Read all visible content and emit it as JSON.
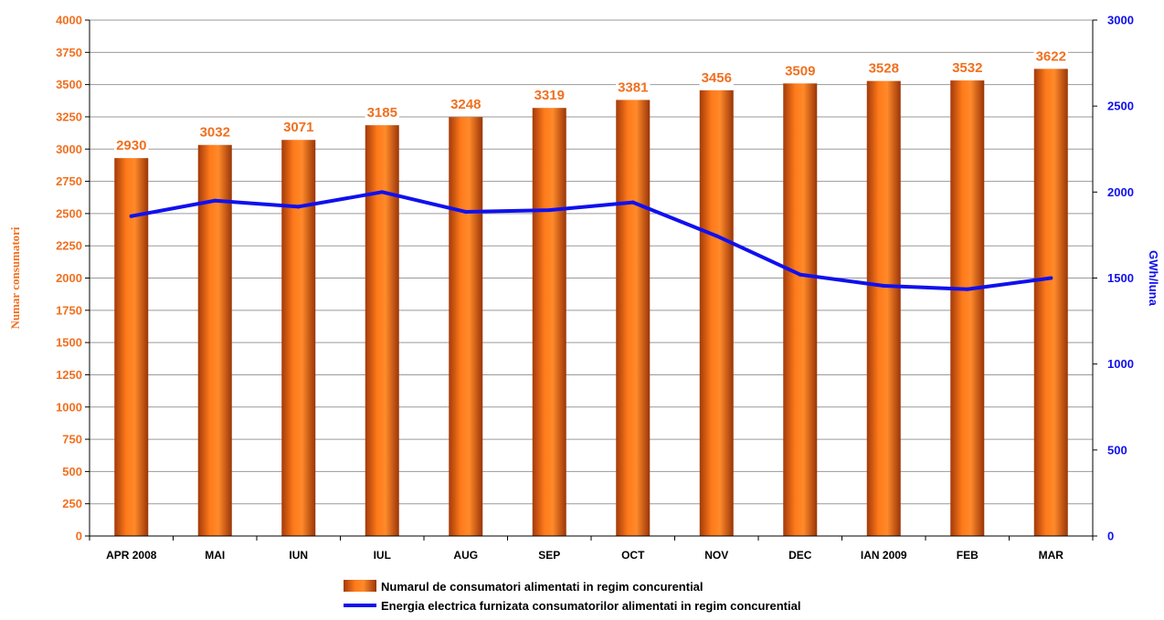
{
  "chart_data": {
    "type": "bar",
    "title": "",
    "categories": [
      "APR 2008",
      "MAI",
      "IUN",
      "IUL",
      "AUG",
      "SEP",
      "OCT",
      "NOV",
      "DEC",
      "IAN 2009",
      "FEB",
      "MAR"
    ],
    "series": [
      {
        "name": "Numarul de consumatori alimentati in regim concurential",
        "type": "bar",
        "axis": "left",
        "color": "#f07020",
        "values": [
          2930,
          3032,
          3071,
          3185,
          3248,
          3319,
          3381,
          3456,
          3509,
          3528,
          3532,
          3622
        ]
      },
      {
        "name": "Energia electrica furnizata consumatorilor alimentati in regim concurential",
        "type": "line",
        "axis": "right",
        "color": "#1010ee",
        "values": [
          1860,
          1950,
          1915,
          2000,
          1885,
          1895,
          1940,
          1745,
          1520,
          1455,
          1435,
          1500
        ]
      }
    ],
    "ylabel": "Numar consumatori",
    "y2label": "GWh/luna",
    "ylim": [
      0,
      4000
    ],
    "y2lim": [
      0,
      3000
    ],
    "yticks": [
      "0",
      "250",
      "500",
      "750",
      "1000",
      "1250",
      "1500",
      "1750",
      "2000",
      "2250",
      "2500",
      "2750",
      "3000",
      "3250",
      "3500",
      "3750",
      "4000"
    ],
    "y2ticks": [
      "0",
      "500",
      "1000",
      "1500",
      "2000",
      "2500",
      "3000"
    ],
    "grid": true,
    "legend_position": "bottom"
  }
}
